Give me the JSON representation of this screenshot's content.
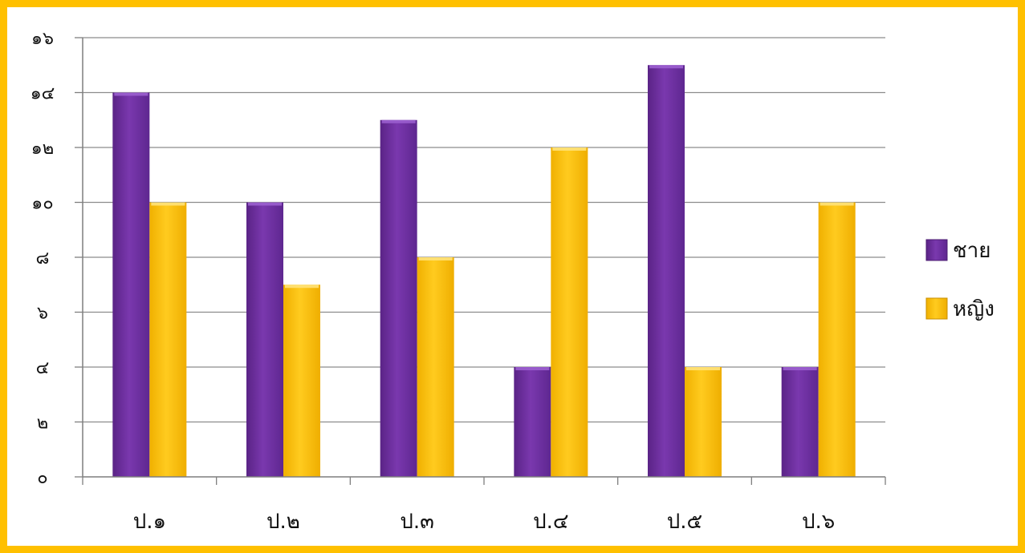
{
  "colors": {
    "frame": "#FFC000",
    "grid": "#8C8C8C",
    "axis": "#7F7F7F"
  },
  "chart_data": {
    "type": "bar",
    "categories": [
      "ป.๑",
      "ป.๒",
      "ป.๓",
      "ป.๔",
      "ป.๕",
      "ป.๖"
    ],
    "series": [
      {
        "name": "ชาย",
        "values": [
          14,
          10,
          13,
          4,
          15,
          4
        ],
        "color": "#7030A0"
      },
      {
        "name": "หญิง",
        "values": [
          10,
          7,
          8,
          12,
          4,
          10
        ],
        "color": "#FFC000"
      }
    ],
    "ylim": [
      0,
      16
    ],
    "yticks": [
      0,
      2,
      4,
      6,
      8,
      10,
      12,
      14,
      16
    ],
    "ytick_labels": [
      "๐",
      "๒",
      "๔",
      "๖",
      "๘",
      "๑๐",
      "๑๒",
      "๑๔",
      "๑๖"
    ],
    "title": "",
    "xlabel": "",
    "ylabel": "",
    "grid": true,
    "legend_position": "right"
  }
}
